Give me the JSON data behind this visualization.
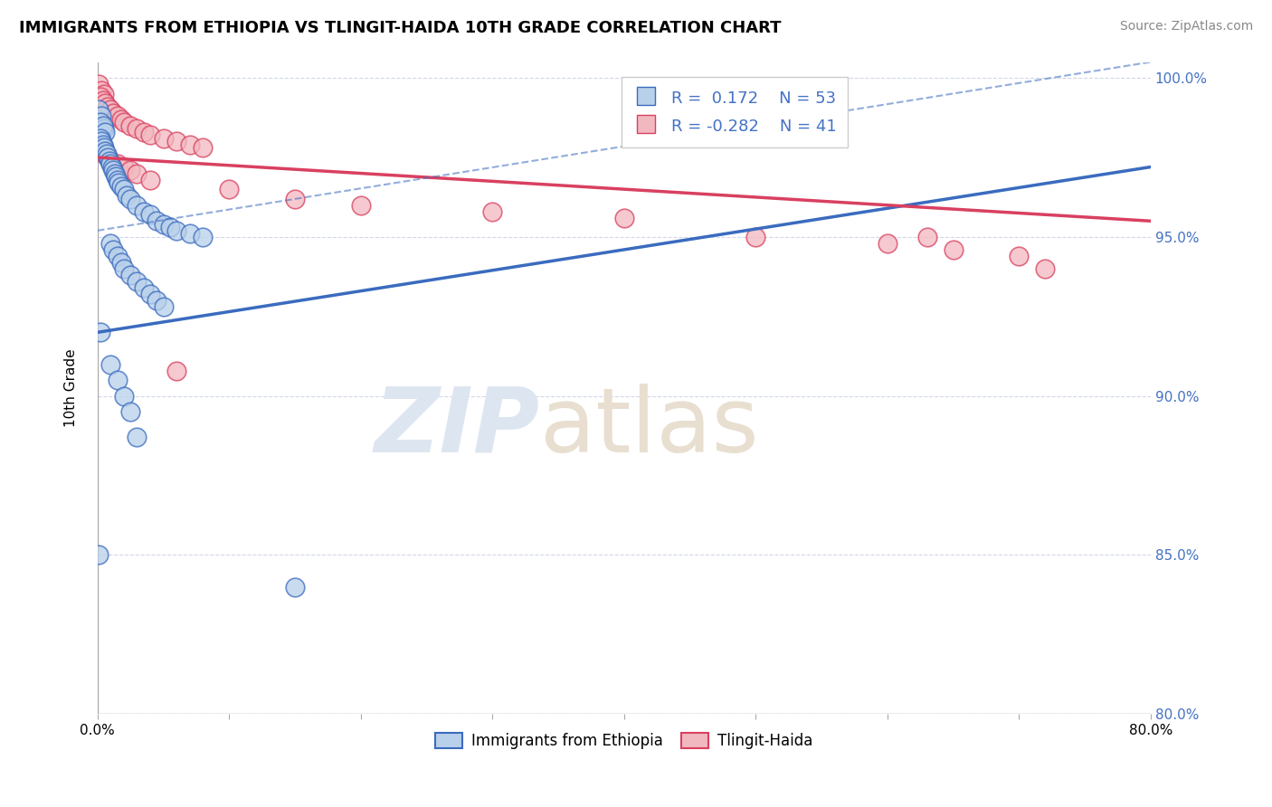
{
  "title": "IMMIGRANTS FROM ETHIOPIA VS TLINGIT-HAIDA 10TH GRADE CORRELATION CHART",
  "source": "Source: ZipAtlas.com",
  "xlabel_bottom": "Immigrants from Ethiopia",
  "xlabel_bottom2": "Tlingit-Haida",
  "ylabel": "10th Grade",
  "xmin": 0.0,
  "xmax": 0.8,
  "ymin": 0.8,
  "ymax": 1.005,
  "r_blue": 0.172,
  "n_blue": 53,
  "r_pink": -0.282,
  "n_pink": 41,
  "blue_color": "#b8d0ea",
  "pink_color": "#f2b8c0",
  "blue_line_color": "#3a6bbf",
  "pink_line_color": "#d94060",
  "blue_scatter": [
    [
      0.001,
      0.99
    ],
    [
      0.003,
      0.988
    ],
    [
      0.002,
      0.986
    ],
    [
      0.005,
      0.984
    ],
    [
      0.004,
      0.985
    ],
    [
      0.006,
      0.983
    ],
    [
      0.002,
      0.981
    ],
    [
      0.003,
      0.98
    ],
    [
      0.004,
      0.979
    ],
    [
      0.005,
      0.978
    ],
    [
      0.006,
      0.977
    ],
    [
      0.007,
      0.976
    ],
    [
      0.008,
      0.975
    ],
    [
      0.009,
      0.974
    ],
    [
      0.01,
      0.973
    ],
    [
      0.011,
      0.972
    ],
    [
      0.012,
      0.971
    ],
    [
      0.013,
      0.97
    ],
    [
      0.014,
      0.969
    ],
    [
      0.015,
      0.968
    ],
    [
      0.016,
      0.967
    ],
    [
      0.018,
      0.966
    ],
    [
      0.02,
      0.965
    ],
    [
      0.022,
      0.963
    ],
    [
      0.025,
      0.962
    ],
    [
      0.03,
      0.96
    ],
    [
      0.035,
      0.958
    ],
    [
      0.04,
      0.957
    ],
    [
      0.045,
      0.955
    ],
    [
      0.05,
      0.954
    ],
    [
      0.055,
      0.953
    ],
    [
      0.06,
      0.952
    ],
    [
      0.07,
      0.951
    ],
    [
      0.08,
      0.95
    ],
    [
      0.01,
      0.948
    ],
    [
      0.012,
      0.946
    ],
    [
      0.015,
      0.944
    ],
    [
      0.018,
      0.942
    ],
    [
      0.02,
      0.94
    ],
    [
      0.025,
      0.938
    ],
    [
      0.03,
      0.936
    ],
    [
      0.035,
      0.934
    ],
    [
      0.04,
      0.932
    ],
    [
      0.045,
      0.93
    ],
    [
      0.05,
      0.928
    ],
    [
      0.002,
      0.92
    ],
    [
      0.01,
      0.91
    ],
    [
      0.015,
      0.905
    ],
    [
      0.02,
      0.9
    ],
    [
      0.025,
      0.895
    ],
    [
      0.03,
      0.887
    ],
    [
      0.001,
      0.85
    ],
    [
      0.15,
      0.84
    ]
  ],
  "pink_scatter": [
    [
      0.001,
      0.998
    ],
    [
      0.003,
      0.996
    ],
    [
      0.005,
      0.995
    ],
    [
      0.002,
      0.994
    ],
    [
      0.004,
      0.993
    ],
    [
      0.006,
      0.992
    ],
    [
      0.008,
      0.991
    ],
    [
      0.01,
      0.99
    ],
    [
      0.012,
      0.989
    ],
    [
      0.015,
      0.988
    ],
    [
      0.018,
      0.987
    ],
    [
      0.02,
      0.986
    ],
    [
      0.025,
      0.985
    ],
    [
      0.03,
      0.984
    ],
    [
      0.035,
      0.983
    ],
    [
      0.04,
      0.982
    ],
    [
      0.05,
      0.981
    ],
    [
      0.06,
      0.98
    ],
    [
      0.07,
      0.979
    ],
    [
      0.08,
      0.978
    ],
    [
      0.003,
      0.977
    ],
    [
      0.005,
      0.976
    ],
    [
      0.008,
      0.975
    ],
    [
      0.01,
      0.974
    ],
    [
      0.015,
      0.973
    ],
    [
      0.02,
      0.972
    ],
    [
      0.025,
      0.971
    ],
    [
      0.03,
      0.97
    ],
    [
      0.04,
      0.968
    ],
    [
      0.1,
      0.965
    ],
    [
      0.15,
      0.962
    ],
    [
      0.2,
      0.96
    ],
    [
      0.3,
      0.958
    ],
    [
      0.4,
      0.956
    ],
    [
      0.5,
      0.95
    ],
    [
      0.6,
      0.948
    ],
    [
      0.65,
      0.946
    ],
    [
      0.7,
      0.944
    ],
    [
      0.72,
      0.94
    ],
    [
      0.06,
      0.908
    ],
    [
      0.63,
      0.95
    ]
  ],
  "dashed_line": [
    [
      0.0,
      0.952
    ],
    [
      0.8,
      1.005
    ]
  ],
  "blue_reg_line": [
    [
      0.0,
      0.92
    ],
    [
      0.8,
      0.972
    ]
  ],
  "pink_reg_line": [
    [
      0.0,
      0.975
    ],
    [
      0.8,
      0.955
    ]
  ]
}
